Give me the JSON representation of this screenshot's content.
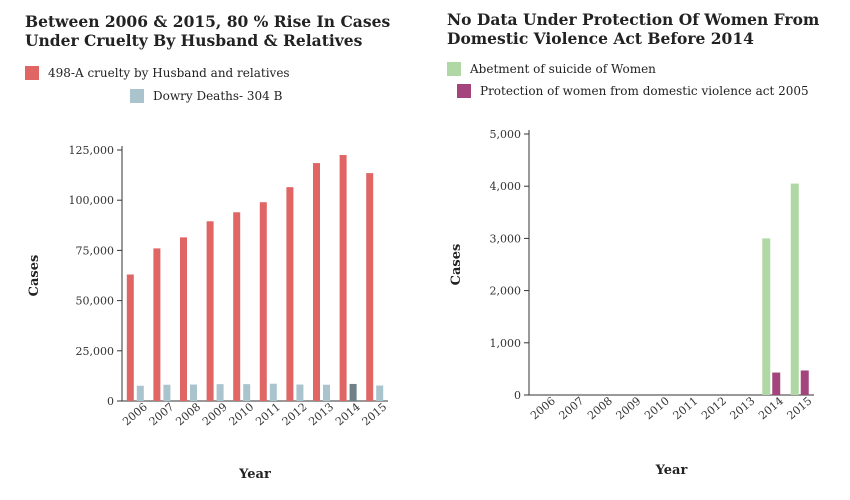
{
  "chart_data": [
    {
      "type": "bar",
      "title": "Between 2006 & 2015, 80 % Rise In Cases Under Cruelty By Husband & Relatives",
      "xlabel": "Year",
      "ylabel": "Cases",
      "ylim": [
        0,
        125000
      ],
      "yticks": [
        "0",
        "25,000",
        "50,000",
        "75,000",
        "100,000",
        "125,000"
      ],
      "categories": [
        "2006",
        "2007",
        "2008",
        "2009",
        "2010",
        "2011",
        "2012",
        "2013",
        "2014",
        "2015"
      ],
      "series": [
        {
          "name": "498-A cruelty by Husband and relatives",
          "color": "#e06666",
          "values": [
            63000,
            76000,
            81500,
            89500,
            94000,
            99000,
            106500,
            118500,
            122500,
            113500
          ]
        },
        {
          "name": "Dowry Deaths- 304 B",
          "color": "#a9c4cc",
          "values": [
            7600,
            8100,
            8200,
            8400,
            8400,
            8600,
            8200,
            8100,
            8500,
            7700
          ]
        }
      ],
      "highlight": {
        "series": 1,
        "index": 8,
        "color": "#6f8087"
      },
      "legend_position": "top-left",
      "grid": false
    },
    {
      "type": "bar",
      "title": "No Data Under Protection Of Women From Domestic Violence Act Before 2014",
      "xlabel": "Year",
      "ylabel": "Cases",
      "ylim": [
        0,
        5000
      ],
      "yticks": [
        "0",
        "1,000",
        "2,000",
        "3,000",
        "4,000",
        "5,000"
      ],
      "categories": [
        "2006",
        "2007",
        "2008",
        "2009",
        "2010",
        "2011",
        "2012",
        "2013",
        "2014",
        "2015"
      ],
      "series": [
        {
          "name": "Abetment of suicide of Women",
          "color": "#b0d8a4",
          "values": [
            0,
            0,
            0,
            0,
            0,
            0,
            0,
            0,
            3000,
            4050
          ]
        },
        {
          "name": "Protection of women from domestic violence act 2005",
          "color": "#a3457c",
          "values": [
            0,
            0,
            0,
            0,
            0,
            0,
            0,
            0,
            430,
            470
          ]
        }
      ],
      "legend_position": "top-left",
      "grid": false
    }
  ]
}
